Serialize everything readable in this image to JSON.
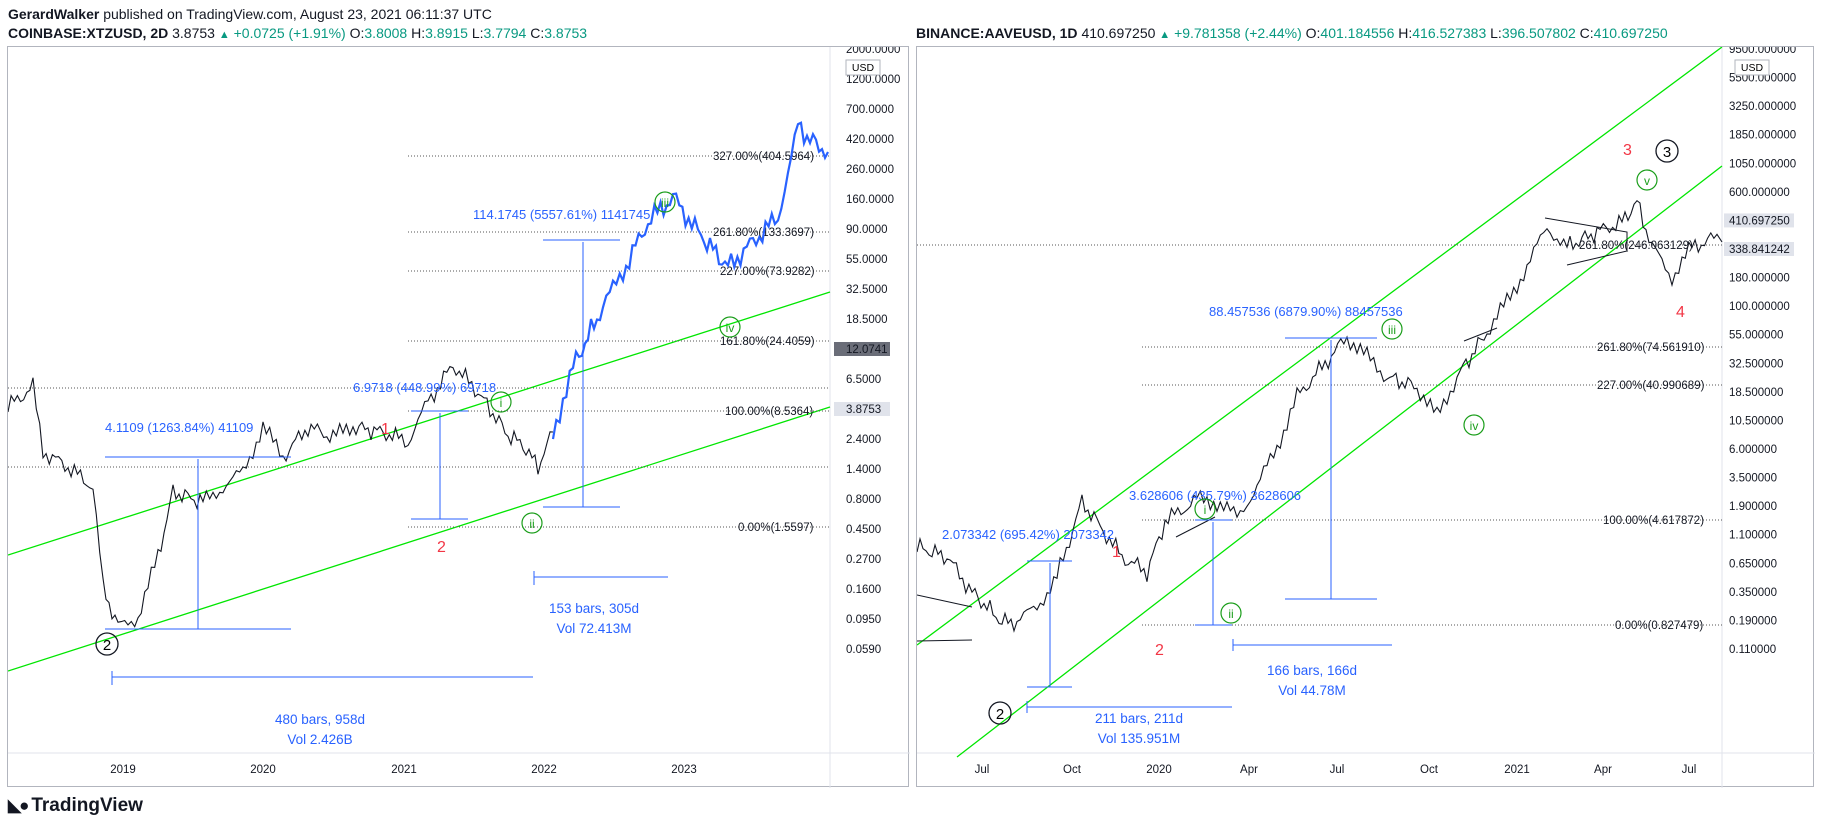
{
  "header": {
    "author": "GerardWalker",
    "published_text": "published on TradingView.com, August 23, 2021 06:11:37 UTC"
  },
  "left_chart": {
    "symbol": "COINBASE:XTZUSD, 2D",
    "last": "3.8753",
    "change": "+0.0725 (+1.91%)",
    "open_label": "O:",
    "open": "3.8008",
    "high_label": "H:",
    "high": "3.8915",
    "low_label": "L:",
    "low": "3.7794",
    "close_label": "C:",
    "close": "3.8753",
    "currency": "USD",
    "price_ticks": [
      "2000.0000",
      "1200.0000",
      "700.0000",
      "420.0000",
      "260.0000",
      "160.0000",
      "90.0000",
      "55.0000",
      "32.5000",
      "18.5000",
      "12.0741",
      "6.5000",
      "3.8753",
      "2.4000",
      "1.4000",
      "0.8000",
      "0.4500",
      "0.2700",
      "0.1600",
      "0.0950",
      "0.0590"
    ],
    "time_ticks": [
      "2019",
      "2020",
      "2021",
      "2022",
      "2023"
    ],
    "fib_levels": [
      "327.00%(404.5964)",
      "261.80%(133.3697)",
      "227.00%(73.9282)",
      "161.80%(24.4059)",
      "100.00%(8.5364)",
      "0.00%(1.5597)"
    ],
    "measure_labels": [
      "4.1109 (1263.84%) 41109",
      "6.9718 (448.99%) 69718",
      "114.1745 (5557.61%) 1141745"
    ],
    "range_label_1": "480 bars, 958d",
    "range_vol_1": "Vol 2.426B",
    "range_label_2": "153 bars, 305d",
    "range_vol_2": "Vol 72.413M",
    "wave_labels": {
      "red_1": "1",
      "red_2": "2",
      "black_2": "2",
      "i": "i",
      "ii": "ii",
      "iii": "iii",
      "iv": "iv"
    }
  },
  "right_chart": {
    "symbol": "BINANCE:AAVEUSD, 1D",
    "last": "410.697250",
    "change": "+9.781358 (+2.44%)",
    "open_label": "O:",
    "open": "401.184556",
    "high_label": "H:",
    "high": "416.527383",
    "low_label": "L:",
    "low": "396.507802",
    "close_label": "C:",
    "close": "410.697250",
    "currency": "USD",
    "price_ticks": [
      "9500.000000",
      "5500.000000",
      "3250.000000",
      "1850.000000",
      "1050.000000",
      "600.000000",
      "410.697250",
      "338.841242",
      "180.000000",
      "100.000000",
      "55.000000",
      "32.500000",
      "18.500000",
      "10.500000",
      "6.000000",
      "3.500000",
      "1.900000",
      "1.100000",
      "0.650000",
      "0.350000",
      "0.190000",
      "0.110000"
    ],
    "time_ticks": [
      "Jul",
      "Oct",
      "2020",
      "Apr",
      "Jul",
      "Oct",
      "2021",
      "Apr",
      "Jul"
    ],
    "fib_levels": [
      "261.80%(74.561910)",
      "227.00%(40.990689)",
      "100.00%(4.617872)",
      "0.00%(0.827479)",
      "261.80%(246.063129)"
    ],
    "measure_labels": [
      "2.073342 (695.42%) 2073342",
      "3.628606 (435.79%) 3628606",
      "88.457536 (6879.90%) 88457536"
    ],
    "range_label_1": "211 bars, 211d",
    "range_vol_1": "Vol 135.951M",
    "range_label_2": "166 bars, 166d",
    "range_vol_2": "Vol 44.78M",
    "wave_labels": {
      "red_1": "1",
      "red_2": "2",
      "red_3": "3",
      "red_4": "4",
      "black_2": "2",
      "black_3": "3",
      "i": "i",
      "ii": "ii",
      "iii": "iii",
      "iv": "iv",
      "v": "v"
    }
  },
  "footer": {
    "brand": "TradingView",
    "logo_icon": "tradingview-logo-icon"
  },
  "colors": {
    "up": "#089981",
    "down": "#f23645",
    "measure": "#2962ff",
    "channel": "#00e600",
    "wave": "#1b9e1b"
  }
}
